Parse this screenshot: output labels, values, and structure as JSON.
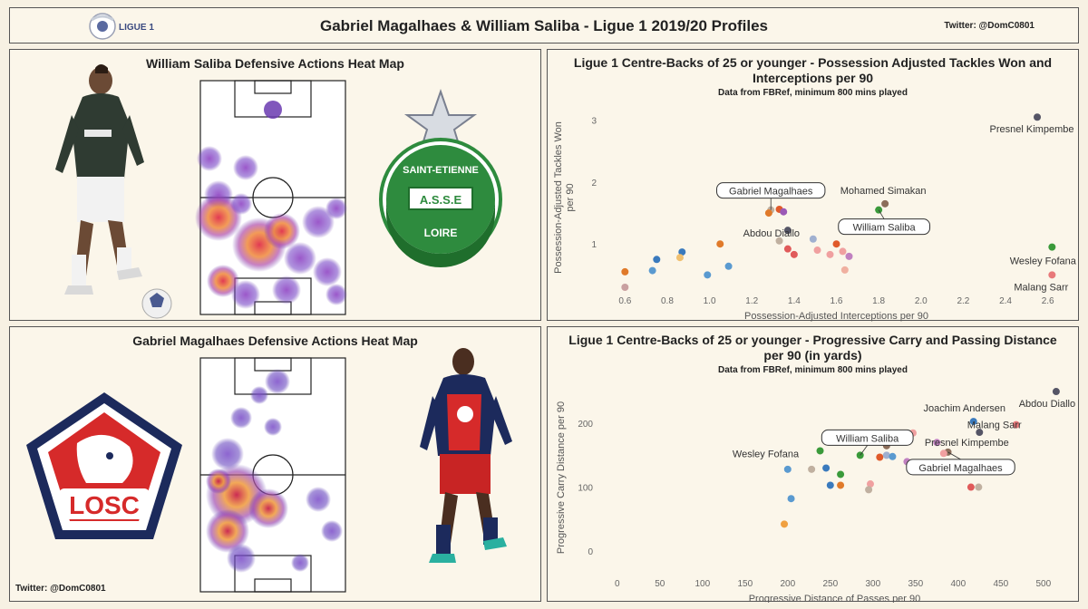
{
  "header": {
    "title": "Gabriel Magalhaes & William Saliba - Ligue 1 2019/20 Profiles",
    "twitter": "Twitter: @DomC0801",
    "league_logo_text": "LIGUE 1"
  },
  "panels": {
    "saliba_heatmap": {
      "title": "William Saliba Defensive Actions Heat Map",
      "club_badge": {
        "top": "SAINT-ETIENNE",
        "middle": "A.S.S.E",
        "bottom": "LOIRE",
        "color": "#2e8b3e"
      }
    },
    "gabriel_heatmap": {
      "title": "Gabriel Magalhaes Defensive Actions Heat Map",
      "club_badge": {
        "text": "LOSC",
        "color_red": "#d62a2a",
        "color_navy": "#1c2a5c"
      },
      "twitter": "Twitter: @DomC0801"
    }
  },
  "chart_data": [
    {
      "type": "scatter",
      "title": "Ligue 1 Centre-Backs of 25 or younger - Possession Adjusted Tackles Won and Interceptions per 90",
      "title_lines": [
        "Ligue 1 Centre-Backs of 25 or younger - Possession Adjusted Tackles Won and",
        "Interceptions per 90"
      ],
      "subtitle": "Data from FBRef, minimum 800 mins played",
      "xlabel": "Possession-Adjusted Interceptions per 90",
      "ylabel": "Possession-Adjusted Tackles Won per 90",
      "ylabel_lines": [
        "Possession-Adjusted Tackles Won",
        "per 90"
      ],
      "xlim": [
        0.5,
        2.7
      ],
      "ylim": [
        0.3,
        3.2
      ],
      "xticks": [
        "0.6",
        "0.8",
        "1.0",
        "1.2",
        "1.4",
        "1.6",
        "1.8",
        "2.0",
        "2.2",
        "2.4",
        "2.6"
      ],
      "yticks": [
        "1",
        "2",
        "3"
      ],
      "grid": false,
      "points": [
        {
          "x": 2.55,
          "y": 3.05,
          "color": "#555566",
          "label": "Presnel Kimpembe"
        },
        {
          "x": 1.83,
          "y": 1.65,
          "color": "#8c6d5a",
          "label": "Mohamed Simakan"
        },
        {
          "x": 1.29,
          "y": 1.55,
          "color": "#c0b0a0",
          "label": "Gabriel Magalhaes",
          "boxed": true
        },
        {
          "x": 1.8,
          "y": 1.55,
          "color": "#3a9a3a",
          "label": "William Saliba",
          "boxed": true
        },
        {
          "x": 1.37,
          "y": 1.22,
          "color": "#555566",
          "label": "Abdou Diallo"
        },
        {
          "x": 2.62,
          "y": 0.95,
          "color": "#3a9a3a",
          "label": "Wesley Fofana"
        },
        {
          "x": 2.62,
          "y": 0.5,
          "color": "#e8797a",
          "label": "Malang Sarr"
        },
        {
          "x": 1.33,
          "y": 1.56,
          "color": "#e05a2a"
        },
        {
          "x": 1.35,
          "y": 1.52,
          "color": "#9b59b6"
        },
        {
          "x": 1.28,
          "y": 1.5,
          "color": "#e07a2a"
        },
        {
          "x": 1.05,
          "y": 1.0,
          "color": "#e07a2a"
        },
        {
          "x": 1.6,
          "y": 1.0,
          "color": "#e05a2a"
        },
        {
          "x": 0.6,
          "y": 0.55,
          "color": "#e07a2a"
        },
        {
          "x": 0.6,
          "y": 0.3,
          "color": "#c9a0a0"
        },
        {
          "x": 0.75,
          "y": 0.75,
          "color": "#3a7abd"
        },
        {
          "x": 0.73,
          "y": 0.57,
          "color": "#5a9ad0"
        },
        {
          "x": 0.87,
          "y": 0.87,
          "color": "#3a7abd"
        },
        {
          "x": 0.86,
          "y": 0.78,
          "color": "#f0c070"
        },
        {
          "x": 0.99,
          "y": 0.5,
          "color": "#5a9ad0"
        },
        {
          "x": 1.09,
          "y": 0.64,
          "color": "#5a9ad0"
        },
        {
          "x": 1.33,
          "y": 1.05,
          "color": "#c0b0a0"
        },
        {
          "x": 1.37,
          "y": 0.92,
          "color": "#e05a5a"
        },
        {
          "x": 1.4,
          "y": 0.83,
          "color": "#e05a5a"
        },
        {
          "x": 1.49,
          "y": 1.08,
          "color": "#a0b0d0"
        },
        {
          "x": 1.51,
          "y": 0.9,
          "color": "#f0a0a0"
        },
        {
          "x": 1.57,
          "y": 0.83,
          "color": "#f0a0a0"
        },
        {
          "x": 1.63,
          "y": 0.88,
          "color": "#f0a0a0"
        },
        {
          "x": 1.66,
          "y": 0.8,
          "color": "#c080c0"
        },
        {
          "x": 1.64,
          "y": 0.58,
          "color": "#f0b0a0"
        }
      ]
    },
    {
      "type": "scatter",
      "title": "Ligue 1 Centre-Backs of 25 or younger - Progressive Carry and Passing Distance per 90 (in yards)",
      "title_lines": [
        "Ligue 1 Centre-Backs of 25 or younger - Progressive Carry and Passing Distance",
        "per 90 (in yards)"
      ],
      "subtitle": "Data from FBRef, minimum 800 mins played",
      "xlabel": "Progressive Distance of Passes per 90",
      "ylabel": "Progressive Carry Distance per 90",
      "xlim": [
        -20,
        530
      ],
      "ylim": [
        -30,
        260
      ],
      "xticks": [
        "0",
        "50",
        "100",
        "150",
        "200",
        "250",
        "300",
        "350",
        "400",
        "450",
        "500"
      ],
      "yticks": [
        "0",
        "100",
        "200"
      ],
      "grid": false,
      "points": [
        {
          "x": 515,
          "y": 250,
          "color": "#555566",
          "label": "Abdou Diallo"
        },
        {
          "x": 418,
          "y": 203,
          "color": "#3a7abd",
          "label": "Joachim Andersen"
        },
        {
          "x": 468,
          "y": 198,
          "color": "#e8797a",
          "label": "Malang Sarr"
        },
        {
          "x": 425,
          "y": 186,
          "color": "#555566",
          "label": "Presnel Kimpembe"
        },
        {
          "x": 285,
          "y": 150,
          "color": "#3a9a3a",
          "label": "William Saliba",
          "boxed": true
        },
        {
          "x": 388,
          "y": 155,
          "color": "#8c6d5a",
          "label": "Gabriel Magalhaes",
          "boxed": true
        },
        {
          "x": 238,
          "y": 157,
          "color": "#3a9a3a",
          "label": "Wesley Fofana"
        },
        {
          "x": 196,
          "y": 42,
          "color": "#f0a040"
        },
        {
          "x": 200,
          "y": 128,
          "color": "#5a9ad0"
        },
        {
          "x": 204,
          "y": 82,
          "color": "#5a9ad0"
        },
        {
          "x": 228,
          "y": 128,
          "color": "#c0b0a0"
        },
        {
          "x": 245,
          "y": 130,
          "color": "#3a7abd"
        },
        {
          "x": 250,
          "y": 103,
          "color": "#3a7abd"
        },
        {
          "x": 262,
          "y": 120,
          "color": "#3a9a3a"
        },
        {
          "x": 262,
          "y": 103,
          "color": "#e07a2a"
        },
        {
          "x": 297,
          "y": 105,
          "color": "#f0a0a0"
        },
        {
          "x": 295,
          "y": 96,
          "color": "#c0b0a0"
        },
        {
          "x": 308,
          "y": 147,
          "color": "#e05a2a"
        },
        {
          "x": 316,
          "y": 150,
          "color": "#a0b0d0"
        },
        {
          "x": 316,
          "y": 165,
          "color": "#8c6d5a"
        },
        {
          "x": 322,
          "y": 172,
          "color": "#f0c070"
        },
        {
          "x": 323,
          "y": 148,
          "color": "#5a9ad0"
        },
        {
          "x": 340,
          "y": 140,
          "color": "#c080c0"
        },
        {
          "x": 347,
          "y": 185,
          "color": "#f0a0a0"
        },
        {
          "x": 375,
          "y": 170,
          "color": "#c080c0"
        },
        {
          "x": 383,
          "y": 153,
          "color": "#f0a0a0"
        },
        {
          "x": 415,
          "y": 100,
          "color": "#e05a5a"
        },
        {
          "x": 424,
          "y": 100,
          "color": "#c0b0a0"
        }
      ]
    }
  ]
}
